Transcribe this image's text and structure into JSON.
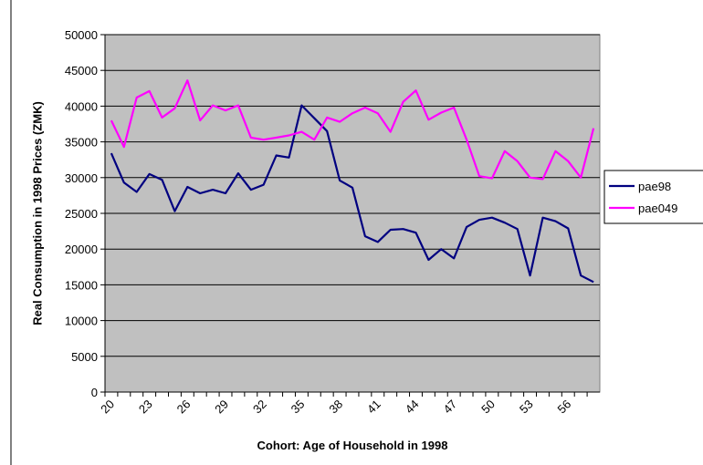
{
  "chart_data": {
    "type": "line",
    "y_label": "Real Consumption in 1998 Prices (ZMK)",
    "x_label": "Cohort: Age of Household in 1998",
    "categories": [
      "20",
      null,
      null,
      "23",
      null,
      null,
      "26",
      null,
      null,
      "29",
      null,
      null,
      "32",
      null,
      null,
      "35",
      null,
      null,
      "38",
      null,
      null,
      "41",
      null,
      null,
      "44",
      null,
      null,
      "47",
      null,
      null,
      "50",
      null,
      null,
      "53",
      null,
      null,
      "56",
      null,
      null
    ],
    "series": [
      {
        "name": "pae98",
        "color": "#000080",
        "values": [
          33400,
          29300,
          28000,
          30500,
          29700,
          25300,
          28700,
          27800,
          28300,
          27800,
          30600,
          28300,
          29000,
          33100,
          32800,
          40100,
          38300,
          36500,
          29600,
          28600,
          21800,
          21000,
          22700,
          22800,
          22300,
          18500,
          20000,
          18700,
          23100,
          24100,
          24400,
          23700,
          22800,
          16300,
          24400,
          23900,
          22900,
          16300,
          15400
        ]
      },
      {
        "name": "pae049",
        "color": "#ff00ff",
        "values": [
          38000,
          34300,
          41200,
          42100,
          38400,
          39700,
          43600,
          38000,
          40100,
          39400,
          40100,
          35600,
          35300,
          35600,
          35900,
          36400,
          35300,
          38400,
          37800,
          39000,
          39800,
          39000,
          36400,
          40600,
          42200,
          38100,
          39100,
          39800,
          35300,
          30200,
          29900,
          33700,
          32300,
          30000,
          29800,
          33700,
          32300,
          30000,
          36900
        ]
      }
    ],
    "ylim": [
      0,
      50000
    ],
    "yticks": [
      0,
      5000,
      10000,
      15000,
      20000,
      25000,
      30000,
      35000,
      40000,
      45000,
      50000
    ],
    "grid": true,
    "plot_background": "#c0c0c0",
    "legend": "right"
  }
}
